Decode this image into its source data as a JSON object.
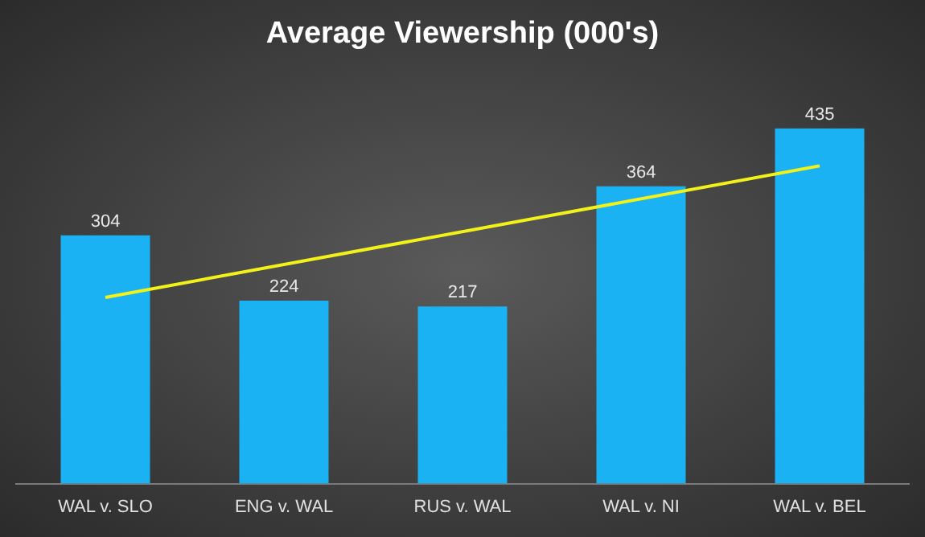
{
  "chart_data": {
    "type": "bar",
    "title": "Average Viewership (000's)",
    "categories": [
      "WAL v. SLO",
      "ENG v. WAL",
      "RUS v. WAL",
      "WAL v. NI",
      "WAL v. BEL"
    ],
    "series": [
      {
        "color": "#1ab2f2",
        "values": [
          304,
          224,
          217,
          364,
          435
        ],
        "value_labels": [
          "304",
          "224",
          "217",
          "364",
          "435"
        ]
      },
      {
        "type": "line",
        "color": "#f2f21a",
        "values": [
          228,
          null,
          null,
          null,
          389
        ],
        "marker": "none"
      }
    ],
    "grid": false,
    "legend": false,
    "tick_labels": "x"
  }
}
